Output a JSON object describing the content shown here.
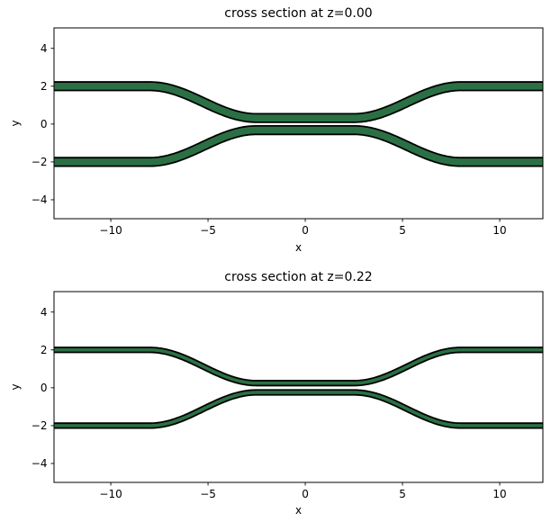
{
  "figure": {
    "background": "#ffffff",
    "text_color": "#000000",
    "spine_color": "#000000"
  },
  "chart_data": [
    {
      "type": "area",
      "title": "cross section at z=0.00",
      "xlabel": "x",
      "ylabel": "y",
      "xlim": [
        -12.92,
        12.22
      ],
      "ylim": [
        -5.0,
        5.08
      ],
      "xticks": [
        -10,
        -5,
        0,
        5,
        10
      ],
      "xtick_labels": [
        "−10",
        "−5",
        "0",
        "5",
        "10"
      ],
      "yticks": [
        -4,
        -2,
        0,
        2,
        4
      ],
      "ytick_labels": [
        "−4",
        "−2",
        "0",
        "2",
        "4"
      ],
      "grid": false,
      "legend": null,
      "geometry": {
        "coupling_half_length": 2.5,
        "bend_end_x": 8.0
      },
      "series": [
        {
          "name": "top-waveguide",
          "shape": "s-bend-band",
          "outer_center_y": 2.0,
          "coupling_center_y": 0.32,
          "thickness": 0.45,
          "fill": "#2a7044",
          "edge_color": "#000000"
        },
        {
          "name": "bottom-waveguide",
          "shape": "s-bend-band",
          "outer_center_y": -2.0,
          "coupling_center_y": -0.32,
          "thickness": 0.45,
          "fill": "#2a7044",
          "edge_color": "#000000"
        }
      ]
    },
    {
      "type": "area",
      "title": "cross section at z=0.22",
      "xlabel": "x",
      "ylabel": "y",
      "xlim": [
        -12.92,
        12.22
      ],
      "ylim": [
        -5.0,
        5.08
      ],
      "xticks": [
        -10,
        -5,
        0,
        5,
        10
      ],
      "xtick_labels": [
        "−10",
        "−5",
        "0",
        "5",
        "10"
      ],
      "yticks": [
        -4,
        -2,
        0,
        2,
        4
      ],
      "ytick_labels": [
        "−4",
        "−2",
        "0",
        "2",
        "4"
      ],
      "grid": false,
      "legend": null,
      "geometry": {
        "coupling_half_length": 2.5,
        "bend_end_x": 8.0
      },
      "series": [
        {
          "name": "top-waveguide",
          "shape": "s-bend-band",
          "outer_center_y": 2.0,
          "coupling_center_y": 0.245,
          "thickness": 0.26,
          "fill": "#2a7044",
          "edge_color": "#000000"
        },
        {
          "name": "bottom-waveguide",
          "shape": "s-bend-band",
          "outer_center_y": -2.0,
          "coupling_center_y": -0.245,
          "thickness": 0.26,
          "fill": "#2a7044",
          "edge_color": "#000000"
        }
      ]
    }
  ]
}
